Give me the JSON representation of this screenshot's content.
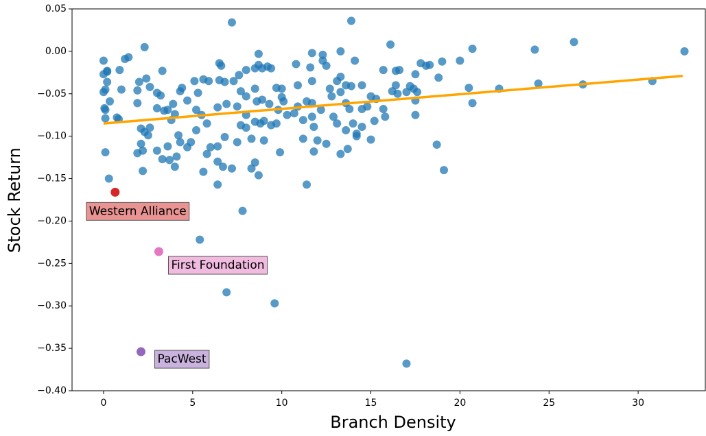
{
  "chart_data": {
    "type": "scatter",
    "x_label": "Branch Density",
    "y_label": "Stock Return",
    "xlim": [
      -1.77,
      33.77
    ],
    "ylim": [
      -0.4,
      0.05
    ],
    "xticks": [
      0,
      5,
      10,
      15,
      20,
      25,
      30
    ],
    "yticks": [
      {
        "value": -0.4,
        "label": "−0.40"
      },
      {
        "value": -0.35,
        "label": "−0.35"
      },
      {
        "value": -0.3,
        "label": "−0.30"
      },
      {
        "value": -0.25,
        "label": "−0.25"
      },
      {
        "value": -0.2,
        "label": "−0.20"
      },
      {
        "value": -0.15,
        "label": "−0.15"
      },
      {
        "value": -0.1,
        "label": "−0.10"
      },
      {
        "value": -0.05,
        "label": "−0.05"
      },
      {
        "value": 0,
        "label": "0.00"
      },
      0.05
    ],
    "points": {
      "color": "#1f77b4",
      "x": [
        7.2,
        13.9,
        16.1,
        2.3,
        20.7,
        24.2,
        26.4,
        32.6,
        30.8,
        26.9,
        24.4,
        22.2,
        20.5,
        20.7,
        20.0,
        19.0,
        18.8,
        18.7,
        19.1,
        17.0,
        9.6,
        6.9,
        5.4,
        7.8,
        11.4,
        6.4,
        5.6,
        2.2,
        0.3,
        0.1,
        17.5,
        15.0,
        0.0,
        0.0,
        0.2,
        0.2,
        0.1,
        0.0,
        0.35,
        0.05,
        0.1,
        0.1,
        0.75,
        0.85,
        0.2,
        0.9,
        1.2,
        1.4,
        1.0,
        1.9,
        1.9,
        2.0,
        2.4,
        2.6,
        3.3,
        3.0,
        3.2,
        3.0,
        3.4,
        3.6,
        3.9,
        4.0,
        3.8,
        2.1,
        2.6,
        2.3,
        2.5,
        2.1,
        2.2,
        1.9,
        3.0,
        3.6,
        3.3,
        3.7,
        4.1,
        4.0,
        4.2,
        4.3,
        4.7,
        4.9,
        5.2,
        4.3,
        4.4,
        4.7,
        5.1,
        5.3,
        5.6,
        5.9,
        5.2,
        5.5,
        5.8,
        6.0,
        5.8,
        6.4,
        6.4,
        6.7,
        7.2,
        6.5,
        6.6,
        6.5,
        6.8,
        6.4,
        6.9,
        7.3,
        7.6,
        8.0,
        7.7,
        8.0,
        7.5,
        8.0,
        7.7,
        8.0,
        7.5,
        6.8,
        8.5,
        8.7,
        8.7,
        8.9,
        9.2,
        9.4,
        8.5,
        8.6,
        8.9,
        9.3,
        8.5,
        8.8,
        9.0,
        9.4,
        8.3,
        9.0,
        8.5,
        8.3,
        8.7,
        10.0,
        9.7,
        10.0,
        10.1,
        9.8,
        10.3,
        9.7,
        9.9,
        10.8,
        10.9,
        10.9,
        10.7,
        11.2,
        11.4,
        11.7,
        11.6,
        11.7,
        11.7,
        11.7,
        11.8,
        11.2,
        11.8,
        12.0,
        12.2,
        12.3,
        12.3,
        12.5,
        12.5,
        12.7,
        12.8,
        12.9,
        13.1,
        13.1,
        13.3,
        13.3,
        13.3,
        13.3,
        13.6,
        13.6,
        13.6,
        13.7,
        13.8,
        13.9,
        14.0,
        14.1,
        14.2,
        14.2,
        14.5,
        14.5,
        14.5,
        14.8,
        15.0,
        15.2,
        15.3,
        15.7,
        15.7,
        15.8,
        16.2,
        16.4,
        16.4,
        16.6,
        16.5,
        17.0,
        17.2,
        17.5,
        17.4,
        17.6,
        17.5,
        17.8,
        18.1,
        18.3
      ],
      "y": [
        0.034,
        0.036,
        0.008,
        0.005,
        0.003,
        0.002,
        0.011,
        0.0,
        -0.035,
        -0.039,
        -0.038,
        -0.044,
        -0.043,
        -0.061,
        -0.011,
        -0.012,
        -0.031,
        -0.11,
        -0.14,
        -0.368,
        -0.297,
        -0.284,
        -0.222,
        -0.188,
        -0.157,
        -0.157,
        -0.142,
        -0.141,
        -0.15,
        -0.119,
        -0.075,
        -0.104,
        -0.011,
        -0.027,
        -0.023,
        -0.036,
        -0.045,
        -0.048,
        -0.059,
        -0.067,
        -0.069,
        -0.079,
        -0.078,
        -0.08,
        -0.024,
        -0.022,
        -0.009,
        -0.007,
        -0.045,
        -0.046,
        -0.061,
        -0.036,
        -0.032,
        -0.042,
        -0.023,
        -0.049,
        -0.052,
        -0.067,
        -0.07,
        -0.069,
        -0.062,
        -0.074,
        -0.081,
        -0.091,
        -0.09,
        -0.095,
        -0.099,
        -0.109,
        -0.117,
        -0.12,
        -0.117,
        -0.112,
        -0.127,
        -0.128,
        -0.124,
        -0.136,
        -0.099,
        -0.107,
        -0.113,
        -0.107,
        -0.093,
        -0.047,
        -0.043,
        -0.058,
        -0.035,
        -0.049,
        -0.033,
        -0.035,
        -0.069,
        -0.075,
        -0.085,
        -0.113,
        -0.121,
        -0.112,
        -0.13,
        -0.136,
        -0.138,
        -0.014,
        -0.017,
        -0.034,
        -0.036,
        -0.066,
        -0.062,
        -0.035,
        -0.028,
        -0.022,
        -0.047,
        -0.053,
        -0.065,
        -0.075,
        -0.087,
        -0.09,
        -0.107,
        -0.101,
        -0.02,
        -0.016,
        -0.003,
        -0.02,
        -0.018,
        -0.02,
        -0.044,
        -0.059,
        -0.057,
        -0.062,
        -0.083,
        -0.085,
        -0.082,
        -0.087,
        -0.103,
        -0.105,
        -0.131,
        -0.138,
        -0.146,
        -0.044,
        -0.043,
        -0.054,
        -0.059,
        -0.069,
        -0.075,
        -0.085,
        -0.119,
        -0.015,
        -0.04,
        -0.065,
        -0.073,
        -0.081,
        -0.059,
        -0.002,
        -0.019,
        -0.035,
        -0.061,
        -0.077,
        -0.089,
        -0.103,
        -0.118,
        -0.105,
        -0.069,
        -0.004,
        -0.011,
        -0.017,
        -0.109,
        -0.044,
        -0.053,
        -0.077,
        -0.035,
        -0.085,
        -0.048,
        0.0,
        -0.03,
        -0.121,
        -0.04,
        -0.061,
        -0.093,
        -0.115,
        -0.068,
        -0.041,
        -0.085,
        -0.011,
        -0.097,
        -0.1,
        -0.089,
        -0.068,
        -0.04,
        -0.065,
        -0.053,
        -0.082,
        -0.056,
        -0.022,
        -0.068,
        -0.077,
        -0.047,
        -0.023,
        -0.04,
        -0.022,
        -0.05,
        -0.048,
        -0.041,
        -0.027,
        -0.044,
        -0.048,
        -0.058,
        -0.014,
        -0.017,
        -0.016
      ]
    },
    "trend": {
      "color": "#ffa500",
      "x": [
        0,
        32.5
      ],
      "y": [
        -0.085,
        -0.029
      ]
    },
    "highlights": [
      {
        "label": "Western Alliance",
        "x": 0.65,
        "y": -0.166,
        "color": "#d62728"
      },
      {
        "label": "First Foundation",
        "x": 3.1,
        "y": -0.236,
        "color": "#e377c2"
      },
      {
        "label": "PacWest",
        "x": 2.1,
        "y": -0.354,
        "color": "#9467bd"
      }
    ]
  }
}
